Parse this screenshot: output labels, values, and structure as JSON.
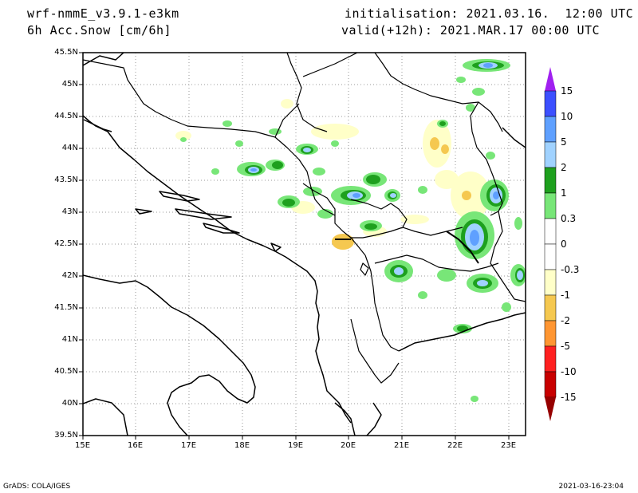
{
  "header": {
    "model": "wrf-nmmE_v3.9.1-e3km",
    "field": "6h Acc.Snow [cm/6h]",
    "init": "initialisation: 2021.03.16.  12:00 UTC",
    "valid": "valid(+12h): 2021.MAR.17 00:00 UTC"
  },
  "map": {
    "lat_labels": [
      "45.5N",
      "45N",
      "44.5N",
      "44N",
      "43.5N",
      "43N",
      "42.5N",
      "42N",
      "41.5N",
      "41N",
      "40.5N",
      "40N",
      "39.5N"
    ],
    "lon_labels": [
      "15E",
      "16E",
      "17E",
      "18E",
      "19E",
      "20E",
      "21E",
      "22E",
      "23E"
    ],
    "lat_range": [
      39.5,
      45.5
    ],
    "lon_range": [
      15.0,
      23.3
    ],
    "grid": "dotted"
  },
  "colorbar": {
    "levels": [
      "15",
      "10",
      "5",
      "2",
      "1",
      "0.3",
      "0",
      "-0.3",
      "-1",
      "-2",
      "-5",
      "-10",
      "-15"
    ],
    "colors": [
      "#a020f0",
      "#3c50ff",
      "#5fa0ff",
      "#a0d2ff",
      "#1ea01e",
      "#78e678",
      "#ffffff",
      "#ffffc8",
      "#f5c850",
      "#ff9632",
      "#ff2020",
      "#c80000",
      "#960000"
    ]
  },
  "footer": {
    "left": "GrADS: COLA/IGES",
    "right": "2021-03-16-23:04"
  }
}
